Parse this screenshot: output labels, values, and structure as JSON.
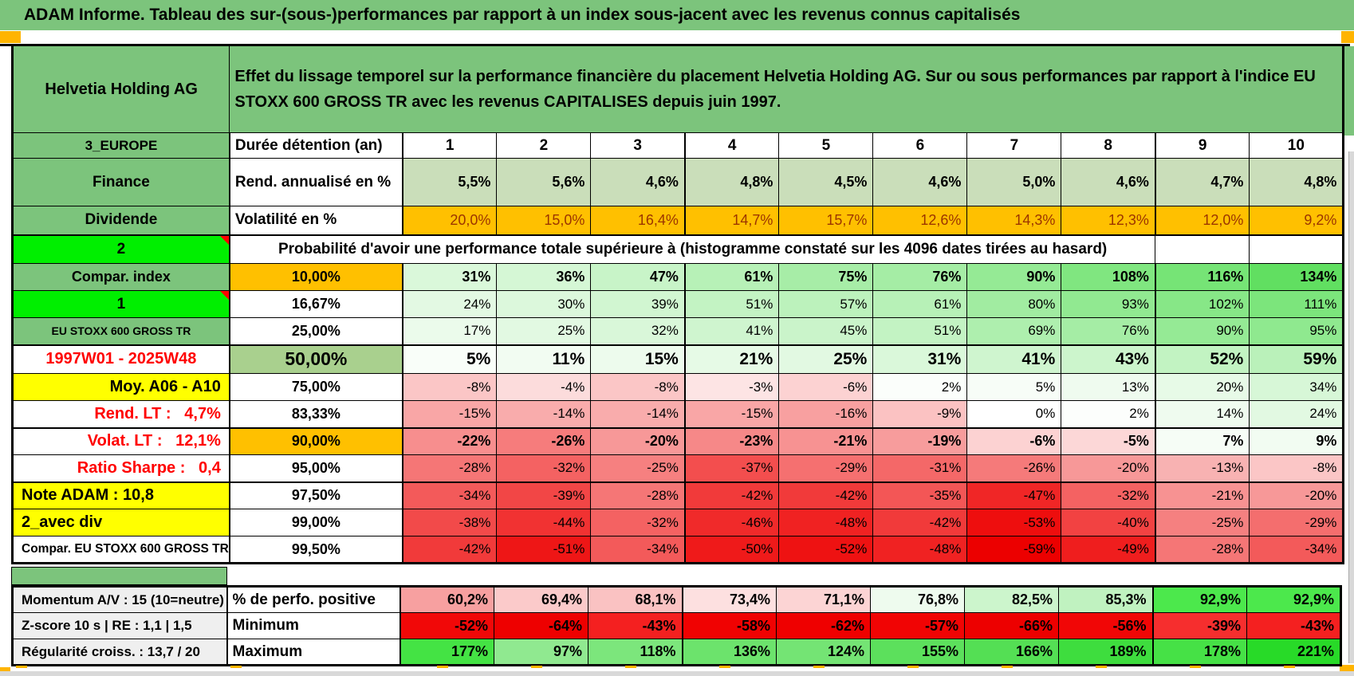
{
  "title": "ADAM Informe. Tableau des sur-(sous-)performances par rapport à un index sous-jacent avec les revenus connus capitalisés",
  "header": {
    "name": "Helvetia Holding AG",
    "description": "Effet du lissage temporel sur la performance financière du placement Helvetia Holding AG. Sur ou sous performances par rapport à l'indice EU STOXX 600 GROSS TR avec les revenus CAPITALISES depuis juin 1997."
  },
  "colors": {
    "sheet_green": "#7cc47c",
    "accent_orange": "#ffc000",
    "handle_orange": "#ffb400",
    "bright_green": "#00ef00",
    "yellow": "#ffff00",
    "label_gray": "#efefef",
    "green_50pct": "#a9d08e",
    "rend_row_green": "#cadeba",
    "red_text": "#ff0000",
    "volat_text": "#9c3400",
    "scale_max_green": "#28da28",
    "scale_max_red": "#ec0000"
  },
  "grid": {
    "rows": [
      {
        "label": "3_EUROPE",
        "label_bg": "#7cc47c",
        "label_fg": "#000000",
        "label_align": "center",
        "label_size": 17,
        "mid": "Durée détention (an)",
        "mid_kind": "text",
        "values": [
          "1",
          "2",
          "3",
          "4",
          "5",
          "6",
          "7",
          "8",
          "9",
          "10"
        ],
        "bgs": [
          "#ffffff",
          "#ffffff",
          "#ffffff",
          "#ffffff",
          "#ffffff",
          "#ffffff",
          "#ffffff",
          "#ffffff",
          "#ffffff",
          "#ffffff"
        ],
        "val_bold": true,
        "val_size": 19,
        "val_align": "center"
      },
      {
        "label": "Finance",
        "label_bg": "#7cc47c",
        "label_fg": "#000000",
        "label_align": "center",
        "label_size": 19,
        "mid": "Rend. annualisé en %",
        "mid_kind": "text",
        "values": [
          "5,5%",
          "5,6%",
          "4,6%",
          "4,8%",
          "4,5%",
          "4,6%",
          "5,0%",
          "4,6%",
          "4,7%",
          "4,8%"
        ],
        "bgs": [
          "#cadeba",
          "#cadeba",
          "#cadeba",
          "#cadeba",
          "#cadeba",
          "#cadeba",
          "#cadeba",
          "#cadeba",
          "#cadeba",
          "#cadeba"
        ],
        "val_bold": true,
        "val_size": 18
      },
      {
        "label": "Dividende",
        "label_bg": "#7cc47c",
        "label_fg": "#000000",
        "label_align": "center",
        "label_size": 19,
        "mid": "Volatilité en %",
        "mid_kind": "text",
        "values": [
          "20,0%",
          "15,0%",
          "16,4%",
          "14,7%",
          "15,7%",
          "12,6%",
          "14,3%",
          "12,3%",
          "12,0%",
          "9,2%"
        ],
        "bgs": [
          "#ffc000",
          "#ffc000",
          "#ffc000",
          "#ffc000",
          "#ffc000",
          "#ffc000",
          "#ffc000",
          "#ffc000",
          "#ffc000",
          "#ffc000"
        ],
        "val_fg": "#9c3400",
        "val_size": 18
      },
      {
        "label": "2",
        "label_bg": "#00ef00",
        "label_fg": "#000000",
        "label_align": "center",
        "label_size": 19,
        "note": true,
        "thick_top": true,
        "span_text": "Probabilité d'avoir une performance totale supérieure à (histogramme constaté sur les 4096 dates tirées au hasard)"
      },
      {
        "label": "Compar. index",
        "label_bg": "#7cc47c",
        "label_fg": "#000000",
        "label_align": "center",
        "label_size": 18,
        "mid": "10,00%",
        "mid_bg": "#ffc000",
        "values": [
          "31%",
          "36%",
          "47%",
          "61%",
          "75%",
          "76%",
          "90%",
          "108%",
          "116%",
          "134%"
        ],
        "bgs": [
          "#daf8da",
          "#d5f7d5",
          "#c8f4c8",
          "#b7f1b7",
          "#a7eda7",
          "#a5eda5",
          "#95ea95",
          "#80e680",
          "#76e476",
          "#61df61"
        ],
        "val_bold": true,
        "val_size": 18
      },
      {
        "label": "1",
        "label_bg": "#00ef00",
        "label_fg": "#000000",
        "label_align": "center",
        "label_size": 19,
        "note": true,
        "mid": "16,67%",
        "values": [
          "24%",
          "30%",
          "39%",
          "51%",
          "57%",
          "61%",
          "80%",
          "93%",
          "102%",
          "111%"
        ],
        "bgs": [
          "#e3f9e3",
          "#dcf8dc",
          "#d1f6d1",
          "#c3f3c3",
          "#bcf2bc",
          "#b7f1b7",
          "#a1eca1",
          "#91e991",
          "#87e787",
          "#7ce57c"
        ]
      },
      {
        "label": "EU STOXX 600 GROSS TR",
        "label_bg": "#7cc47c",
        "label_fg": "#000000",
        "label_align": "center",
        "label_size": 14,
        "mid": "25,00%",
        "values": [
          "17%",
          "25%",
          "32%",
          "41%",
          "45%",
          "51%",
          "69%",
          "76%",
          "90%",
          "95%"
        ],
        "bgs": [
          "#ebfbeb",
          "#e2f9e2",
          "#d9f7d9",
          "#cff5cf",
          "#caf4ca",
          "#c3f3c3",
          "#aeefae",
          "#a5eda5",
          "#95ea95",
          "#8fe98f"
        ]
      },
      {
        "label": "1997W01 - 2025W48",
        "label_bg": "#ffffff",
        "label_fg": "#ff0000",
        "label_align": "center",
        "label_size": 20,
        "thick_top": true,
        "mid": "50,00%",
        "mid_bg": "#a9d08e",
        "mid_size": 23,
        "values": [
          "5%",
          "11%",
          "15%",
          "21%",
          "25%",
          "31%",
          "41%",
          "43%",
          "52%",
          "59%"
        ],
        "bgs": [
          "#f9fef9",
          "#f2fcf2",
          "#edfbed",
          "#e6fae6",
          "#e2f9e2",
          "#daf8da",
          "#cff5cf",
          "#ccf5cc",
          "#c2f3c2",
          "#baf1ba"
        ],
        "val_bold": true,
        "val_size": 21
      },
      {
        "label": "Moy. A06 - A10",
        "label_bg": "#ffff00",
        "label_fg": "#000000",
        "label_align": "right",
        "label_size": 20,
        "mid": "75,00%",
        "values": [
          "-8%",
          "-4%",
          "-8%",
          "-3%",
          "-6%",
          "2%",
          "5%",
          "13%",
          "20%",
          "34%"
        ],
        "bgs": [
          "#fbc6c6",
          "#fcdcdc",
          "#fbc6c6",
          "#fde4e4",
          "#fcd2d2",
          "#fbfefb",
          "#f7fdf7",
          "#effbef",
          "#e7fae7",
          "#d7f7d7"
        ]
      },
      {
        "label": "Rend. LT :   4,7%",
        "label_bg": "#ffffff",
        "label_fg": "#ff0000",
        "label_align": "right",
        "label_size": 20,
        "mid": "83,33%",
        "values": [
          "-15%",
          "-14%",
          "-14%",
          "-15%",
          "-16%",
          "-9%",
          "0%",
          "2%",
          "14%",
          "24%"
        ],
        "bgs": [
          "#f9a6a6",
          "#f9acac",
          "#f9acac",
          "#f9a6a6",
          "#f8a0a0",
          "#fbc2c2",
          "#ffffff",
          "#fcfefc",
          "#effbef",
          "#e2f9e2"
        ]
      },
      {
        "label": "Volat. LT :   12,1%",
        "label_bg": "#ffffff",
        "label_fg": "#ff0000",
        "label_align": "right",
        "label_size": 20,
        "thick_top": true,
        "mid": "90,00%",
        "mid_bg": "#ffc000",
        "values": [
          "-22%",
          "-26%",
          "-20%",
          "-23%",
          "-21%",
          "-19%",
          "-6%",
          "-5%",
          "7%",
          "9%"
        ],
        "bgs": [
          "#f78e8e",
          "#f67c7c",
          "#f79898",
          "#f68888",
          "#f79292",
          "#f79c9c",
          "#fcd2d2",
          "#fcd7d7",
          "#f6fdf6",
          "#f2fcf2"
        ],
        "val_bold": true,
        "val_size": 18
      },
      {
        "label": "Ratio Sharpe :   0,4",
        "label_bg": "#ffffff",
        "label_fg": "#ff0000",
        "label_align": "right",
        "label_size": 20,
        "mid": "95,00%",
        "values": [
          "-28%",
          "-32%",
          "-25%",
          "-37%",
          "-29%",
          "-31%",
          "-26%",
          "-20%",
          "-13%",
          "-8%"
        ],
        "bgs": [
          "#f57676",
          "#f46262",
          "#f68080",
          "#f34e4e",
          "#f57070",
          "#f46868",
          "#f57a7a",
          "#f79898",
          "#f8b2b2",
          "#fbc6c6"
        ]
      },
      {
        "label": "Note ADAM : 10,8",
        "label_bg": "#ffff00",
        "label_fg": "#000000",
        "label_align": "left",
        "label_size": 20,
        "thick_top": true,
        "mid": "97,50%",
        "values": [
          "-34%",
          "-39%",
          "-28%",
          "-42%",
          "-42%",
          "-35%",
          "-47%",
          "-32%",
          "-21%",
          "-20%"
        ],
        "bgs": [
          "#f35a5a",
          "#f24646",
          "#f57676",
          "#f13a3a",
          "#f13a3a",
          "#f35656",
          "#f02626",
          "#f46262",
          "#f79292",
          "#f79898"
        ]
      },
      {
        "label": "2_avec div",
        "label_bg": "#ffff00",
        "label_fg": "#000000",
        "label_align": "left",
        "label_size": 20,
        "mid": "99,00%",
        "values": [
          "-38%",
          "-44%",
          "-32%",
          "-46%",
          "-48%",
          "-42%",
          "-53%",
          "-40%",
          "-25%",
          "-29%"
        ],
        "bgs": [
          "#f24a4a",
          "#f13232",
          "#f46262",
          "#f02a2a",
          "#f02222",
          "#f13a3a",
          "#ee0e0e",
          "#f24242",
          "#f58080",
          "#f46e6e"
        ]
      },
      {
        "label": "Compar. EU STOXX 600 GROSS TR",
        "label_bg": "#ffffff",
        "label_fg": "#000000",
        "label_align": "left",
        "label_size": 15.5,
        "mid": "99,50%",
        "values": [
          "-42%",
          "-51%",
          "-34%",
          "-50%",
          "-52%",
          "-48%",
          "-59%",
          "-49%",
          "-28%",
          "-34%"
        ],
        "bgs": [
          "#f13a3a",
          "#ee1616",
          "#f35a5a",
          "#ef1a1a",
          "#ee1212",
          "#f02222",
          "#ec0000",
          "#ef1e1e",
          "#f57676",
          "#f35a5a"
        ]
      }
    ]
  },
  "bottom": {
    "rows": [
      {
        "label": "Momentum A/V : 15 (10=neutre)",
        "label_bg": "#efefef",
        "label_fg": "#000000",
        "label_align": "left",
        "label_size": 17,
        "mid": "% de perfo. positive",
        "mid_kind": "text",
        "values": [
          "60,2%",
          "69,4%",
          "68,1%",
          "73,4%",
          "71,1%",
          "76,8%",
          "82,5%",
          "85,3%",
          "92,9%",
          "92,9%"
        ],
        "bgs": [
          "#f7a0a0",
          "#fbcaca",
          "#fac2c2",
          "#fde0e0",
          "#fcd4d4",
          "#eefbee",
          "#ccf5cc",
          "#c0f2c0",
          "#4ce84c",
          "#4ce84c"
        ],
        "val_bold": true,
        "val_size": 18
      },
      {
        "label": "Z-score 10 s | RE : 1,1 | 1,5",
        "label_bg": "#efefef",
        "label_fg": "#000000",
        "label_align": "left",
        "label_size": 17,
        "mid": "Minimum",
        "mid_kind": "text",
        "values": [
          "-52%",
          "-64%",
          "-43%",
          "-58%",
          "-62%",
          "-57%",
          "-66%",
          "-56%",
          "-39%",
          "-43%"
        ],
        "bgs": [
          "#f10808",
          "#ee0000",
          "#f42020",
          "#f00202",
          "#ef0000",
          "#f10404",
          "#ed0000",
          "#f10606",
          "#f62e2e",
          "#f42020"
        ],
        "val_bold": true,
        "val_size": 18
      },
      {
        "label": "Régularité croiss. : 13,7 / 20",
        "label_bg": "#efefef",
        "label_fg": "#000000",
        "label_align": "left",
        "label_size": 17,
        "mid": "Maximum",
        "mid_kind": "text",
        "values": [
          "177%",
          "97%",
          "118%",
          "136%",
          "124%",
          "155%",
          "166%",
          "189%",
          "178%",
          "221%"
        ],
        "bgs": [
          "#44e344",
          "#90e990",
          "#7ce67c",
          "#6ce36c",
          "#74e474",
          "#5ce05c",
          "#54df54",
          "#3edd3e",
          "#46e146",
          "#28da28"
        ],
        "val_bold": true,
        "val_size": 18
      }
    ]
  }
}
